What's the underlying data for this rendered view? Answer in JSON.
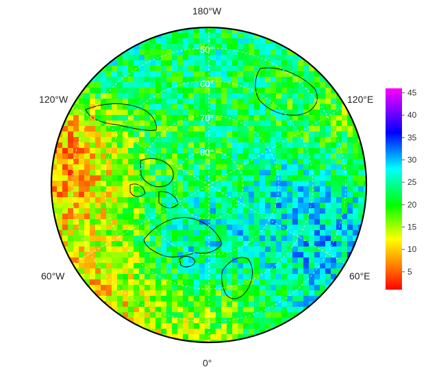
{
  "map": {
    "projection": "north-polar-stereographic",
    "longitude_labels": {
      "top": "180°W",
      "bottom": "0°",
      "upper_left": "120°W",
      "upper_right": "120°E",
      "lower_left": "60°W",
      "lower_right": "60°E"
    },
    "latitude_labels": [
      "50°",
      "60°",
      "70°",
      "80°"
    ],
    "colorbar": {
      "ticks": [
        "5",
        "10",
        "15",
        "20",
        "25",
        "30",
        "35",
        "40",
        "45"
      ],
      "min": 1,
      "max": 46,
      "colors": [
        "#ff0000",
        "#ff8000",
        "#ffff00",
        "#00ff00",
        "#00ffff",
        "#0000ff",
        "#ff00ff"
      ]
    }
  }
}
